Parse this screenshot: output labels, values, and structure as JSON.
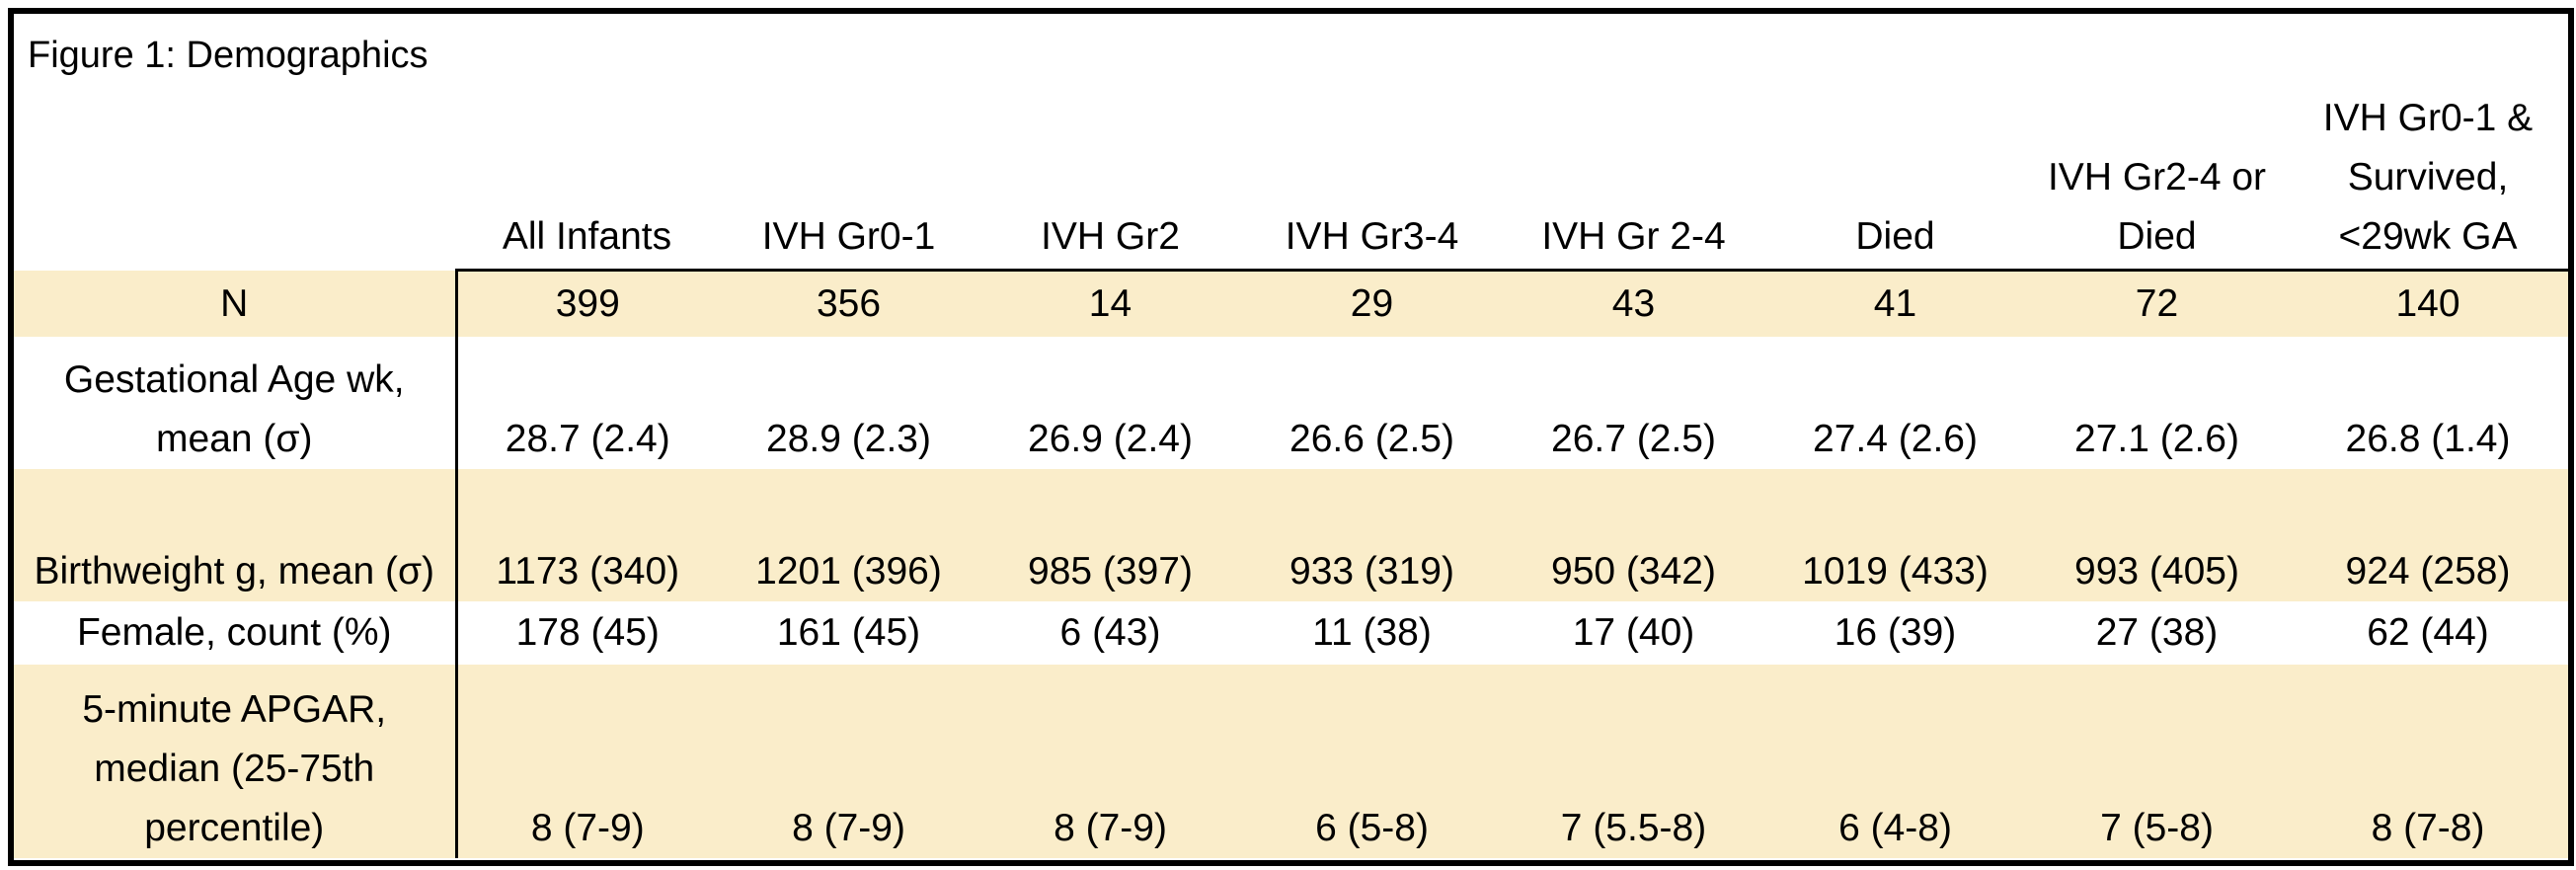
{
  "title": "Figure 1: Demographics",
  "columns": [
    "All Infants",
    "IVH Gr0-1",
    "IVH Gr2",
    "IVH Gr3-4",
    "IVH Gr 2-4",
    "Died",
    "IVH Gr2-4 or Died",
    "IVH Gr0-1 & Survived, <29wk GA"
  ],
  "rows": [
    {
      "label": "N",
      "values": [
        "399",
        "356",
        "14",
        "29",
        "43",
        "41",
        "72",
        "140"
      ]
    },
    {
      "label": "Gestational Age wk, mean (σ)",
      "values": [
        "28.7 (2.4)",
        "28.9 (2.3)",
        "26.9 (2.4)",
        "26.6 (2.5)",
        "26.7 (2.5)",
        "27.4 (2.6)",
        "27.1 (2.6)",
        "26.8 (1.4)"
      ]
    },
    {
      "label": "Birthweight g, mean (σ)",
      "values": [
        "1173 (340)",
        "1201 (396)",
        "985 (397)",
        "933 (319)",
        "950 (342)",
        "1019 (433)",
        "993 (405)",
        "924 (258)"
      ]
    },
    {
      "label": "Female, count (%)",
      "values": [
        "178 (45)",
        "161 (45)",
        "6 (43)",
        "11 (38)",
        "17 (40)",
        "16 (39)",
        "27 (38)",
        "62 (44)"
      ]
    },
    {
      "label": "5-minute APGAR, median (25-75th percentile)",
      "values": [
        "8 (7-9)",
        "8 (7-9)",
        "8 (7-9)",
        "6 (5-8)",
        "7 (5.5-8)",
        "6 (4-8)",
        "7 (5-8)",
        "8 (7-8)"
      ]
    }
  ],
  "colors": {
    "shade": "#faedca",
    "border": "#000000",
    "background": "#ffffff"
  }
}
